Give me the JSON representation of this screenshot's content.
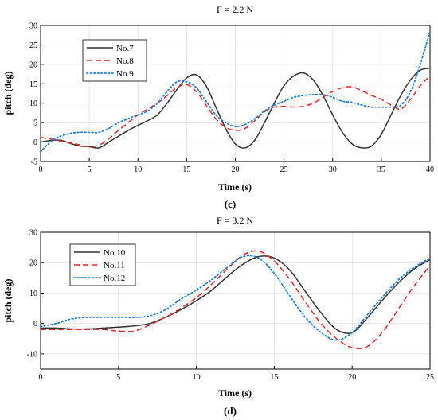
{
  "chart_data": [
    {
      "type": "line",
      "panel_label": "(c)",
      "title": "F = 2.2 N",
      "xlabel": "Time (s)",
      "ylabel": "pitch (deg)",
      "xlim": [
        0,
        40
      ],
      "ylim": [
        -5,
        30
      ],
      "xticks": [
        0,
        5,
        10,
        15,
        20,
        25,
        30,
        35,
        40
      ],
      "yticks": [
        -5,
        0,
        5,
        10,
        15,
        20,
        25,
        30
      ],
      "grid": true,
      "legend_position": "top-left",
      "series": [
        {
          "name": "No.7",
          "color": "#333333",
          "dash": "solid",
          "x": [
            0,
            1,
            2,
            3,
            4,
            5,
            6,
            7,
            8,
            9,
            10,
            11,
            12,
            13,
            14,
            15,
            16,
            17,
            18,
            19,
            20,
            21,
            22,
            23,
            24,
            25,
            26,
            27,
            28,
            29,
            30,
            31,
            32,
            33,
            34,
            35,
            36,
            37,
            38,
            39,
            40
          ],
          "values": [
            0,
            0.4,
            0.5,
            -0.3,
            -1,
            -1.2,
            -1.5,
            0,
            1.5,
            3,
            4.3,
            5.5,
            7,
            10,
            13.5,
            16.5,
            17.3,
            14.5,
            9,
            3.5,
            -0.5,
            -1.5,
            0.5,
            5,
            10,
            14.5,
            17,
            17.8,
            16,
            12,
            7,
            2.5,
            -0.5,
            -1.5,
            -1,
            2,
            7,
            12,
            16,
            18.5,
            19
          ]
        },
        {
          "name": "No.8",
          "color": "#e8272a",
          "dash": "dashed",
          "x": [
            0,
            1,
            2,
            3,
            4,
            5,
            6,
            7,
            8,
            9,
            10,
            11,
            12,
            13,
            14,
            15,
            16,
            17,
            18,
            19,
            20,
            21,
            22,
            23,
            24,
            25,
            26,
            27,
            28,
            29,
            30,
            31,
            32,
            33,
            34,
            35,
            36,
            37,
            38,
            39,
            40
          ],
          "values": [
            1.2,
            0.8,
            0.3,
            -0.2,
            -0.7,
            -1.2,
            -0.8,
            0.8,
            3,
            5,
            7,
            8.5,
            10,
            12,
            14,
            14.8,
            13,
            9.5,
            6,
            3.8,
            3,
            3.5,
            5.5,
            7.8,
            9,
            9.2,
            9,
            9.2,
            10,
            11.5,
            13,
            14,
            14.2,
            13.2,
            12,
            11,
            9.5,
            8.5,
            11,
            14.5,
            17
          ]
        },
        {
          "name": "No.9",
          "color": "#1b7fd9",
          "dash": "dotted",
          "x": [
            0,
            1,
            2,
            3,
            4,
            5,
            6,
            7,
            8,
            9,
            10,
            11,
            12,
            13,
            14,
            15,
            16,
            17,
            18,
            19,
            20,
            21,
            22,
            23,
            24,
            25,
            26,
            27,
            28,
            29,
            30,
            31,
            32,
            33,
            34,
            35,
            36,
            37,
            38,
            39,
            40
          ],
          "values": [
            -2.5,
            0,
            1.5,
            2.2,
            2.5,
            2.5,
            2.5,
            3.5,
            5,
            6,
            7,
            8,
            10,
            13,
            15.5,
            15.5,
            14,
            10.5,
            7,
            5,
            4,
            4.5,
            6,
            8,
            9.5,
            10.5,
            11.5,
            12,
            12.2,
            12.2,
            11.5,
            10.5,
            10.2,
            9.5,
            9,
            9,
            9,
            9.5,
            13,
            20,
            28.5
          ]
        }
      ]
    },
    {
      "type": "line",
      "panel_label": "(d)",
      "title": "F = 3.2 N",
      "xlabel": "Time (s)",
      "ylabel": "pitch (deg)",
      "xlim": [
        0,
        25
      ],
      "ylim": [
        -15,
        30
      ],
      "xticks": [
        0,
        5,
        10,
        15,
        20,
        25
      ],
      "yticks": [
        -10,
        0,
        10,
        20,
        30
      ],
      "grid": true,
      "legend_position": "top-left",
      "series": [
        {
          "name": "No.10",
          "color": "#333333",
          "dash": "solid",
          "x": [
            0,
            1,
            2,
            3,
            4,
            5,
            6,
            7,
            8,
            9,
            10,
            11,
            12,
            13,
            14,
            15,
            16,
            17,
            18,
            19,
            20,
            21,
            22,
            23,
            24,
            25
          ],
          "values": [
            -1.5,
            -1.5,
            -1.8,
            -1.8,
            -1.5,
            -1.2,
            -0.8,
            0,
            2,
            4.5,
            7.5,
            11,
            15.5,
            19.5,
            22,
            21.5,
            17.5,
            10.5,
            3.5,
            -2,
            -3,
            2,
            8,
            13.5,
            18,
            21
          ]
        },
        {
          "name": "No.11",
          "color": "#e8272a",
          "dash": "dashed",
          "x": [
            0,
            1,
            2,
            3,
            4,
            5,
            6,
            7,
            8,
            9,
            10,
            11,
            12,
            13,
            14,
            15,
            16,
            17,
            18,
            19,
            20,
            21,
            22,
            23,
            24,
            25
          ],
          "values": [
            -2,
            -2,
            -2,
            -2,
            -2,
            -2.5,
            -2.5,
            -0.5,
            2,
            5,
            8.5,
            13,
            18,
            22.5,
            23.8,
            20.5,
            14.5,
            7,
            0,
            -5,
            -8,
            -7.5,
            -2.5,
            5,
            12.5,
            19
          ]
        },
        {
          "name": "No.12",
          "color": "#1b7fd9",
          "dash": "dotted",
          "x": [
            0,
            1,
            2,
            3,
            4,
            5,
            6,
            7,
            8,
            9,
            10,
            11,
            12,
            13,
            14,
            15,
            16,
            17,
            18,
            19,
            20,
            21,
            22,
            23,
            24,
            25
          ],
          "values": [
            -1,
            0,
            1.5,
            2,
            2,
            2,
            2,
            2.5,
            4.5,
            8,
            11,
            14.5,
            18.5,
            22,
            21.5,
            16.5,
            9,
            2,
            -3,
            -5.5,
            -3,
            3,
            9,
            14.5,
            18.5,
            21.5
          ]
        }
      ]
    }
  ]
}
